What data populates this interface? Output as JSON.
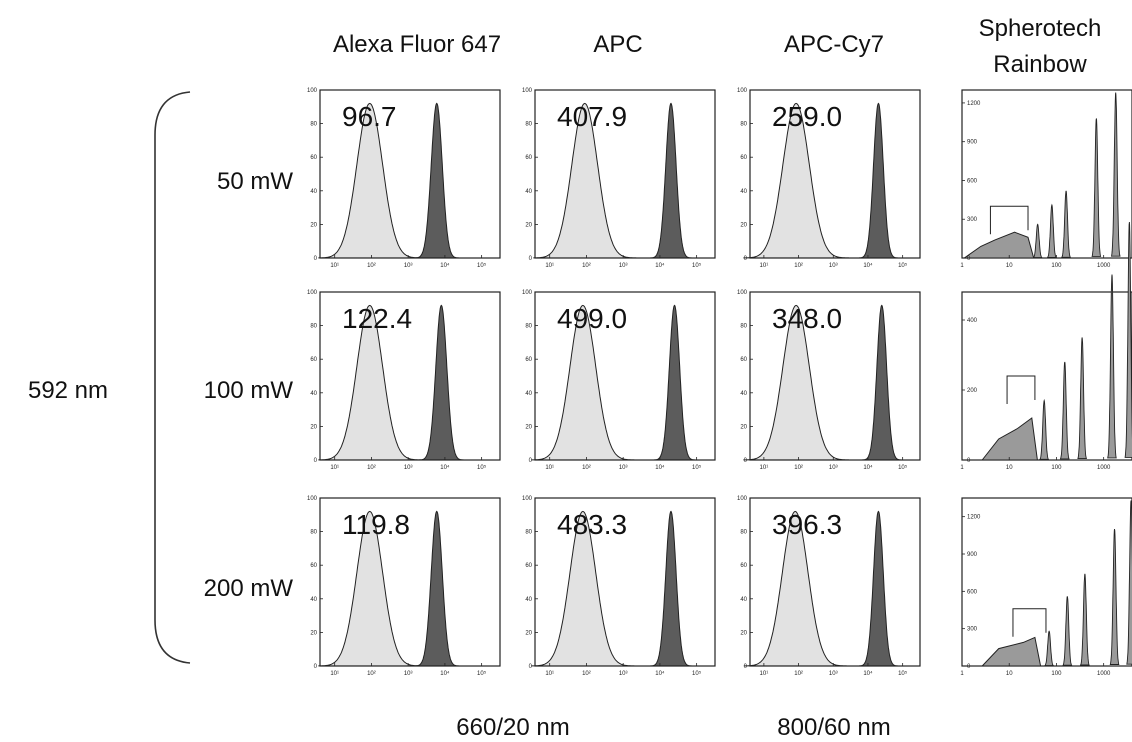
{
  "columns": [
    {
      "key": "af647",
      "lines": [
        "Alexa Fluor 647"
      ]
    },
    {
      "key": "apc",
      "lines": [
        "APC"
      ]
    },
    {
      "key": "apccy7",
      "lines": [
        "APC-Cy7"
      ]
    },
    {
      "key": "rainbow",
      "lines": [
        "Spherotech",
        "Rainbow"
      ]
    }
  ],
  "rows": [
    {
      "key": "50mw",
      "label": "50 mW"
    },
    {
      "key": "100mw",
      "label": "100 mW"
    },
    {
      "key": "200mw",
      "label": "200 mW"
    }
  ],
  "group_label": "592 nm",
  "filter_labels": [
    "660/20 nm",
    "800/60 nm"
  ],
  "colors": {
    "negative_fill": "#e2e2e2",
    "positive_fill": "#5c5c5c",
    "rainbow_fill": "#9a9a9a",
    "outline": "#222222"
  },
  "chart_data": {
    "type": "area",
    "histogram_x_ticks": [
      "10¹",
      "10²",
      "10³",
      "10⁴",
      "10⁵"
    ],
    "histogram_x_tick_values": [
      10,
      100,
      1000,
      10000,
      100000
    ],
    "histogram_y_ticks": [
      "0",
      "20",
      "40",
      "60",
      "80",
      "100"
    ],
    "histogram_ylim": [
      0,
      100
    ],
    "histogram_xlim_log10": [
      0.6,
      5.5
    ],
    "rainbow_x_ticks": [
      "1",
      "10",
      "100",
      "1000"
    ],
    "rainbow_xlim_log10": [
      0,
      3.6
    ],
    "panels": [
      {
        "row": 0,
        "col": 0,
        "value": "96.7",
        "negative": {
          "center": 90,
          "width": 0.35
        },
        "positive": {
          "center": 6000,
          "width": 0.15
        }
      },
      {
        "row": 0,
        "col": 1,
        "value": "407.9",
        "negative": {
          "center": 90,
          "width": 0.35
        },
        "positive": {
          "center": 20000,
          "width": 0.14
        }
      },
      {
        "row": 0,
        "col": 2,
        "value": "259.0",
        "negative": {
          "center": 85,
          "width": 0.38
        },
        "positive": {
          "center": 20000,
          "width": 0.14
        }
      },
      {
        "row": 1,
        "col": 0,
        "value": "122.4",
        "negative": {
          "center": 90,
          "width": 0.35
        },
        "positive": {
          "center": 8000,
          "width": 0.15
        }
      },
      {
        "row": 1,
        "col": 1,
        "value": "499.0",
        "negative": {
          "center": 80,
          "width": 0.35
        },
        "positive": {
          "center": 25000,
          "width": 0.14
        }
      },
      {
        "row": 1,
        "col": 2,
        "value": "348.0",
        "negative": {
          "center": 85,
          "width": 0.38
        },
        "positive": {
          "center": 25000,
          "width": 0.14
        }
      },
      {
        "row": 2,
        "col": 0,
        "value": "119.8",
        "negative": {
          "center": 90,
          "width": 0.35
        },
        "positive": {
          "center": 6000,
          "width": 0.15
        }
      },
      {
        "row": 2,
        "col": 1,
        "value": "483.3",
        "negative": {
          "center": 80,
          "width": 0.35
        },
        "positive": {
          "center": 20000,
          "width": 0.14
        }
      },
      {
        "row": 2,
        "col": 2,
        "value": "396.3",
        "negative": {
          "center": 80,
          "width": 0.37
        },
        "positive": {
          "center": 20000,
          "width": 0.14
        }
      }
    ],
    "rainbow_panels": [
      {
        "row": 0,
        "y_ticks": [
          "0",
          "300",
          "600",
          "900",
          "1200"
        ],
        "ymax": 1300,
        "peaks": [
          {
            "x": 40,
            "y": 260
          },
          {
            "x": 80,
            "y": 410
          },
          {
            "x": 160,
            "y": 520
          },
          {
            "x": 700,
            "y": 1080
          },
          {
            "x": 1800,
            "y": 1280
          }
        ],
        "dim_cluster": [
          {
            "x": 2.5,
            "y": 90
          },
          {
            "x": 5,
            "y": 140
          },
          {
            "x": 13,
            "y": 200
          },
          {
            "x": 25,
            "y": 160
          }
        ],
        "bracket": [
          4,
          25
        ]
      },
      {
        "row": 1,
        "y_ticks": [
          "0",
          "200",
          "400"
        ],
        "ymax": 480,
        "peaks": [
          {
            "x": 55,
            "y": 170
          },
          {
            "x": 150,
            "y": 280
          },
          {
            "x": 350,
            "y": 350
          },
          {
            "x": 1500,
            "y": 530
          },
          {
            "x": 3500,
            "y": 680
          }
        ],
        "dim_cluster": [
          {
            "x": 6,
            "y": 60
          },
          {
            "x": 15,
            "y": 90
          },
          {
            "x": 30,
            "y": 120
          }
        ],
        "bracket": [
          9,
          35
        ]
      },
      {
        "row": 2,
        "y_ticks": [
          "0",
          "300",
          "600",
          "900",
          "1200"
        ],
        "ymax": 1350,
        "peaks": [
          {
            "x": 70,
            "y": 280
          },
          {
            "x": 170,
            "y": 560
          },
          {
            "x": 400,
            "y": 740
          },
          {
            "x": 1700,
            "y": 1100
          },
          {
            "x": 3800,
            "y": 1330
          }
        ],
        "dim_cluster": [
          {
            "x": 6,
            "y": 140
          },
          {
            "x": 20,
            "y": 190
          },
          {
            "x": 35,
            "y": 230
          }
        ],
        "bracket": [
          12,
          60
        ]
      }
    ]
  }
}
